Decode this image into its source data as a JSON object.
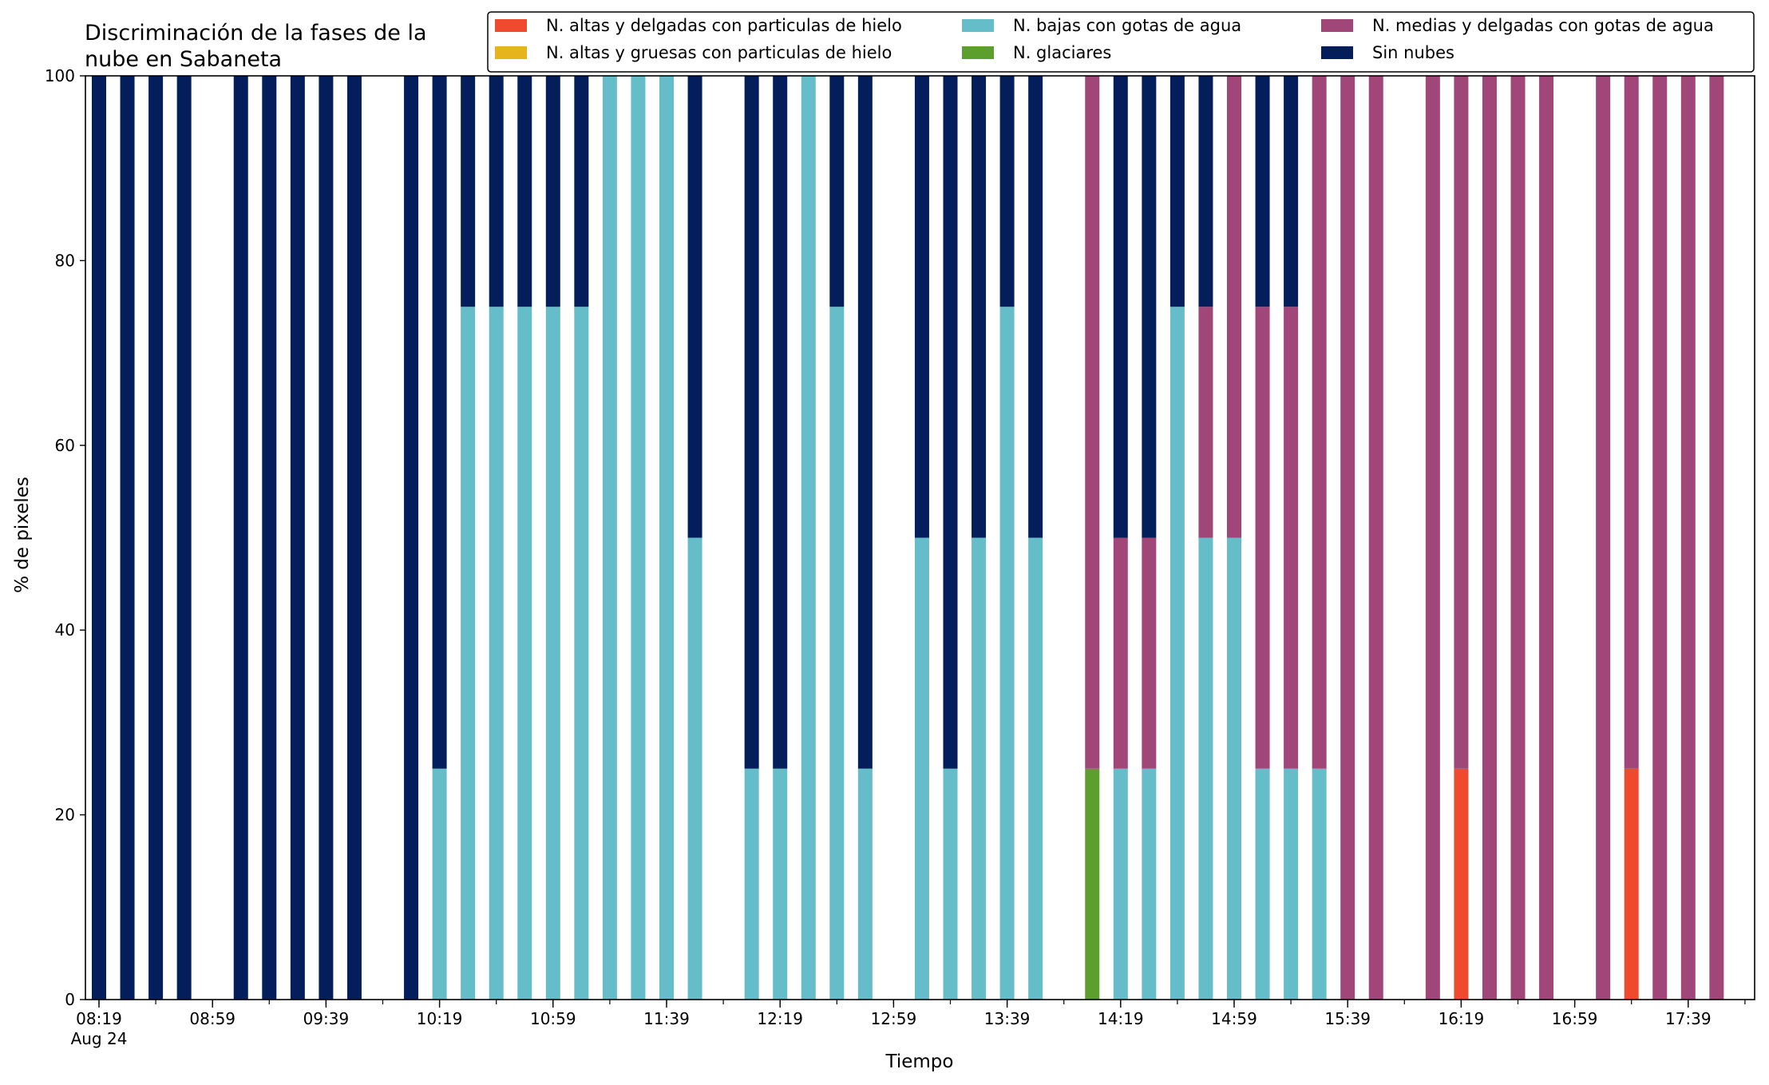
{
  "chart_data": {
    "type": "bar",
    "stacked": true,
    "title_lines": [
      "Discriminación de la fases de la",
      "nube en Sabaneta"
    ],
    "xlabel": "Tiempo",
    "ylabel": "% de pixeles",
    "ylim": [
      0,
      100
    ],
    "y_ticks": [
      "0",
      "20",
      "40",
      "60",
      "80",
      "100"
    ],
    "x_tick_labels": [
      "08:19",
      "08:59",
      "09:39",
      "10:19",
      "10:59",
      "11:39",
      "12:19",
      "12:59",
      "13:39",
      "14:19",
      "14:59",
      "15:39",
      "16:19",
      "16:59",
      "17:39"
    ],
    "x_date_label": "Aug 24",
    "x_interval_minutes": 10,
    "grid": false,
    "legend_position": "top-right",
    "series": [
      {
        "name": "N. altas y delgadas con particulas de hielo",
        "color": "#ef4a2d"
      },
      {
        "name": "N. altas y gruesas con particulas de hielo",
        "color": "#e6b41c"
      },
      {
        "name": "N. bajas con gotas de agua",
        "color": "#66bdca"
      },
      {
        "name": "N. glaciares",
        "color": "#5c9f2d"
      },
      {
        "name": "N. medias y delgadas con gotas de agua",
        "color": "#a14679"
      },
      {
        "name": "Sin nubes",
        "color": "#041e5b"
      }
    ],
    "bars": [
      {
        "time": "08:19",
        "values": [
          0,
          0,
          0,
          0,
          0,
          100
        ]
      },
      {
        "time": "08:29",
        "values": [
          0,
          0,
          0,
          0,
          0,
          100
        ]
      },
      {
        "time": "08:39",
        "values": [
          0,
          0,
          0,
          0,
          0,
          100
        ]
      },
      {
        "time": "08:49",
        "values": [
          0,
          0,
          0,
          0,
          0,
          100
        ]
      },
      {
        "time": "09:09",
        "values": [
          0,
          0,
          0,
          0,
          0,
          100
        ]
      },
      {
        "time": "09:19",
        "values": [
          0,
          0,
          0,
          0,
          0,
          100
        ]
      },
      {
        "time": "09:29",
        "values": [
          0,
          0,
          0,
          0,
          0,
          100
        ]
      },
      {
        "time": "09:39",
        "values": [
          0,
          0,
          0,
          0,
          0,
          100
        ]
      },
      {
        "time": "09:49",
        "values": [
          0,
          0,
          0,
          0,
          0,
          100
        ]
      },
      {
        "time": "10:09",
        "values": [
          0,
          0,
          0,
          0,
          0,
          100
        ]
      },
      {
        "time": "10:19",
        "values": [
          0,
          0,
          25,
          0,
          0,
          75
        ]
      },
      {
        "time": "10:29",
        "values": [
          0,
          0,
          75,
          0,
          0,
          25
        ]
      },
      {
        "time": "10:39",
        "values": [
          0,
          0,
          75,
          0,
          0,
          25
        ]
      },
      {
        "time": "10:49",
        "values": [
          0,
          0,
          75,
          0,
          0,
          25
        ]
      },
      {
        "time": "10:59",
        "values": [
          0,
          0,
          75,
          0,
          0,
          25
        ]
      },
      {
        "time": "11:09",
        "values": [
          0,
          0,
          75,
          0,
          0,
          25
        ]
      },
      {
        "time": "11:19",
        "values": [
          0,
          0,
          100,
          0,
          0,
          0
        ]
      },
      {
        "time": "11:29",
        "values": [
          0,
          0,
          100,
          0,
          0,
          0
        ]
      },
      {
        "time": "11:39",
        "values": [
          0,
          0,
          100,
          0,
          0,
          0
        ]
      },
      {
        "time": "11:49",
        "values": [
          0,
          0,
          50,
          0,
          0,
          50
        ]
      },
      {
        "time": "12:09",
        "values": [
          0,
          0,
          25,
          0,
          0,
          75
        ]
      },
      {
        "time": "12:19",
        "values": [
          0,
          0,
          25,
          0,
          0,
          75
        ]
      },
      {
        "time": "12:29",
        "values": [
          0,
          0,
          100,
          0,
          0,
          0
        ]
      },
      {
        "time": "12:39",
        "values": [
          0,
          0,
          75,
          0,
          0,
          25
        ]
      },
      {
        "time": "12:49",
        "values": [
          0,
          0,
          25,
          0,
          0,
          75
        ]
      },
      {
        "time": "13:09",
        "values": [
          0,
          0,
          50,
          0,
          0,
          50
        ]
      },
      {
        "time": "13:19",
        "values": [
          0,
          0,
          25,
          0,
          0,
          75
        ]
      },
      {
        "time": "13:29",
        "values": [
          0,
          0,
          50,
          0,
          0,
          50
        ]
      },
      {
        "time": "13:39",
        "values": [
          0,
          0,
          75,
          0,
          0,
          25
        ]
      },
      {
        "time": "13:49",
        "values": [
          0,
          0,
          50,
          0,
          0,
          50
        ]
      },
      {
        "time": "14:09",
        "values": [
          0,
          0,
          0,
          25,
          75,
          0
        ]
      },
      {
        "time": "14:19",
        "values": [
          0,
          0,
          25,
          0,
          25,
          50
        ]
      },
      {
        "time": "14:29",
        "values": [
          0,
          0,
          25,
          0,
          25,
          50
        ]
      },
      {
        "time": "14:39",
        "values": [
          0,
          0,
          75,
          0,
          0,
          25
        ]
      },
      {
        "time": "14:49",
        "values": [
          0,
          0,
          50,
          0,
          25,
          25
        ]
      },
      {
        "time": "14:59",
        "values": [
          0,
          0,
          50,
          0,
          50,
          0
        ]
      },
      {
        "time": "15:09",
        "values": [
          0,
          0,
          25,
          0,
          50,
          25
        ]
      },
      {
        "time": "15:19",
        "values": [
          0,
          0,
          25,
          0,
          50,
          25
        ]
      },
      {
        "time": "15:29",
        "values": [
          0,
          0,
          25,
          0,
          75,
          0
        ]
      },
      {
        "time": "15:39",
        "values": [
          0,
          0,
          0,
          0,
          100,
          0
        ]
      },
      {
        "time": "15:49",
        "values": [
          0,
          0,
          0,
          0,
          100,
          0
        ]
      },
      {
        "time": "16:09",
        "values": [
          0,
          0,
          0,
          0,
          100,
          0
        ]
      },
      {
        "time": "16:19",
        "values": [
          25,
          0,
          0,
          0,
          75,
          0
        ]
      },
      {
        "time": "16:29",
        "values": [
          0,
          0,
          0,
          0,
          100,
          0
        ]
      },
      {
        "time": "16:39",
        "values": [
          0,
          0,
          0,
          0,
          100,
          0
        ]
      },
      {
        "time": "16:49",
        "values": [
          0,
          0,
          0,
          0,
          100,
          0
        ]
      },
      {
        "time": "17:09",
        "values": [
          0,
          0,
          0,
          0,
          100,
          0
        ]
      },
      {
        "time": "17:19",
        "values": [
          25,
          0,
          0,
          0,
          75,
          0
        ]
      },
      {
        "time": "17:29",
        "values": [
          0,
          0,
          0,
          0,
          100,
          0
        ]
      },
      {
        "time": "17:39",
        "values": [
          0,
          0,
          0,
          0,
          100,
          0
        ]
      },
      {
        "time": "17:49",
        "values": [
          0,
          0,
          0,
          0,
          100,
          0
        ]
      }
    ]
  }
}
